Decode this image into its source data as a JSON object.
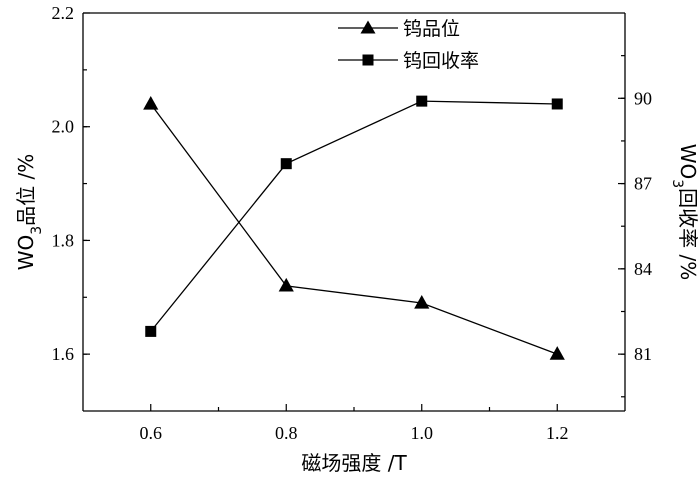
{
  "chart_data": {
    "type": "line",
    "x": [
      0.6,
      0.8,
      1.0,
      1.2
    ],
    "xlabel": "磁场强度 /T",
    "xlim": [
      0.5,
      1.3
    ],
    "xticks": [
      "0.6",
      "0.8",
      "1.0",
      "1.2"
    ],
    "grid": false,
    "legend_position": "top-center",
    "series": [
      {
        "name": "钨品位",
        "axis": "left",
        "marker": "triangle",
        "values": [
          2.04,
          1.72,
          1.69,
          1.6
        ]
      },
      {
        "name": "钨回收率",
        "axis": "right",
        "marker": "square",
        "values": [
          81.8,
          87.7,
          89.9,
          89.8
        ]
      }
    ],
    "left_axis": {
      "label_prefix": "WO",
      "label_sub": "3",
      "label_suffix": "品位 /%",
      "ylim": [
        1.5,
        2.2
      ],
      "ticks": [
        "1.6",
        "1.8",
        "2.0",
        "2.2"
      ]
    },
    "right_axis": {
      "label_prefix": "WO",
      "label_sub": "3",
      "label_suffix": "回收率 /%",
      "ylim": [
        79.0,
        93.0
      ],
      "ticks": [
        "81",
        "84",
        "87",
        "90"
      ]
    },
    "colors": {
      "line": "#000000",
      "marker": "#000000",
      "axis": "#000000"
    }
  }
}
